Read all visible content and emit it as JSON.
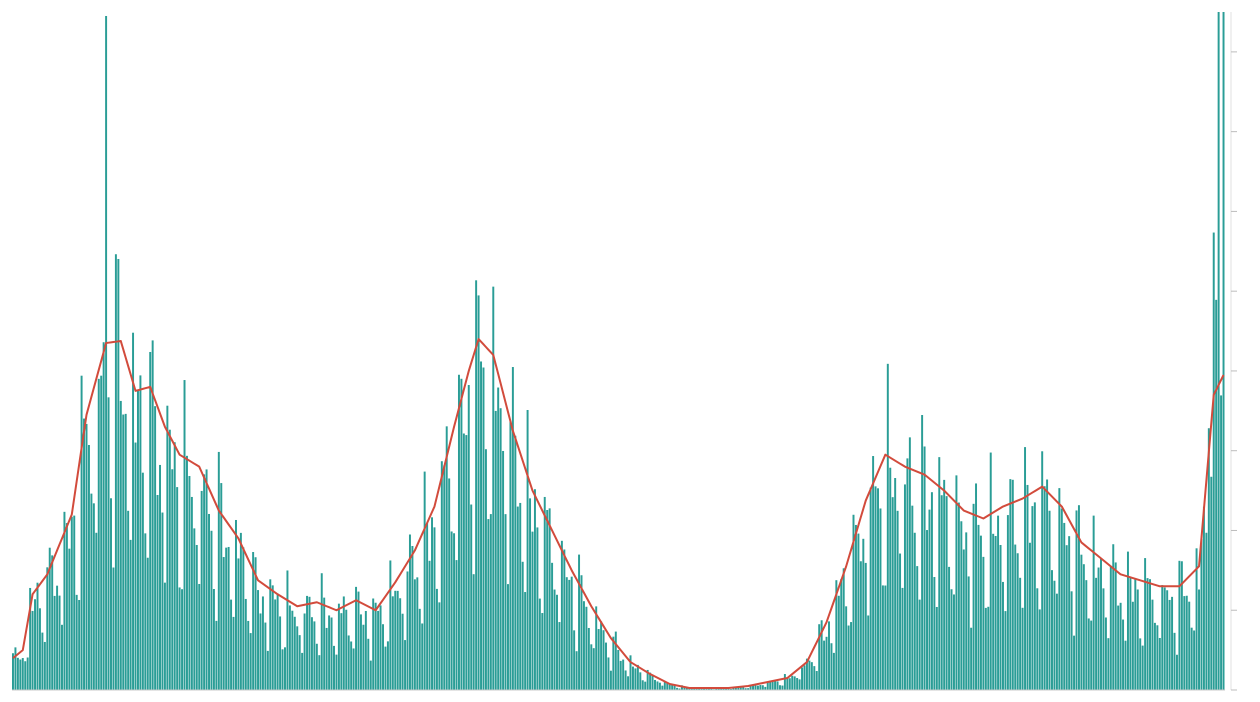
{
  "chart_data": {
    "type": "bar",
    "title": "",
    "xlabel": "",
    "ylabel": "",
    "bar_color": "#2a9d96",
    "line_color": "#d24b3c",
    "grid": false,
    "legend": "none",
    "ylim": [
      0,
      340
    ],
    "y_ticks": [
      0,
      40,
      80,
      120,
      160,
      200,
      240,
      280,
      320
    ],
    "line_series_name": "",
    "series_anchors": [
      [
        0,
        16
      ],
      [
        4,
        20
      ],
      [
        8,
        48
      ],
      [
        14,
        58
      ],
      [
        18,
        70
      ],
      [
        24,
        88
      ],
      [
        30,
        138
      ],
      [
        38,
        174
      ],
      [
        44,
        175
      ],
      [
        50,
        150
      ],
      [
        56,
        152
      ],
      [
        62,
        132
      ],
      [
        68,
        118
      ],
      [
        76,
        112
      ],
      [
        84,
        90
      ],
      [
        92,
        76
      ],
      [
        100,
        55
      ],
      [
        108,
        48
      ],
      [
        116,
        42
      ],
      [
        124,
        44
      ],
      [
        132,
        40
      ],
      [
        140,
        45
      ],
      [
        148,
        40
      ],
      [
        156,
        54
      ],
      [
        164,
        70
      ],
      [
        172,
        92
      ],
      [
        180,
        132
      ],
      [
        186,
        160
      ],
      [
        190,
        176
      ],
      [
        196,
        168
      ],
      [
        204,
        130
      ],
      [
        212,
        100
      ],
      [
        220,
        80
      ],
      [
        228,
        60
      ],
      [
        236,
        42
      ],
      [
        244,
        26
      ],
      [
        252,
        14
      ],
      [
        260,
        8
      ],
      [
        268,
        3
      ],
      [
        276,
        1
      ],
      [
        284,
        1
      ],
      [
        292,
        1
      ],
      [
        300,
        2
      ],
      [
        308,
        4
      ],
      [
        316,
        6
      ],
      [
        324,
        14
      ],
      [
        332,
        34
      ],
      [
        340,
        62
      ],
      [
        348,
        95
      ],
      [
        356,
        118
      ],
      [
        364,
        112
      ],
      [
        372,
        108
      ],
      [
        380,
        100
      ],
      [
        388,
        90
      ],
      [
        396,
        86
      ],
      [
        404,
        92
      ],
      [
        412,
        96
      ],
      [
        420,
        102
      ],
      [
        428,
        92
      ],
      [
        436,
        74
      ],
      [
        444,
        66
      ],
      [
        452,
        58
      ],
      [
        460,
        55
      ],
      [
        468,
        52
      ],
      [
        476,
        52
      ],
      [
        484,
        62
      ],
      [
        490,
        148
      ],
      [
        494,
        158
      ]
    ],
    "bar_count": 495
  }
}
